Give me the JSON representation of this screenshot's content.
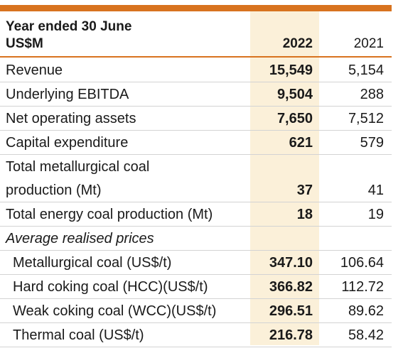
{
  "colors": {
    "accent": "#d8731f",
    "highlight": "#fbf0d9"
  },
  "header": {
    "line1": "Year ended 30 June",
    "line2": "US$M",
    "col_2022": "2022",
    "col_2021": "2021"
  },
  "rows": [
    {
      "label": "Revenue",
      "v2022": "15,549",
      "v2021": "5,154"
    },
    {
      "label": "Underlying EBITDA",
      "v2022": "9,504",
      "v2021": "288"
    },
    {
      "label": "Net operating assets",
      "v2022": "7,650",
      "v2021": "7,512"
    },
    {
      "label": "Capital expenditure",
      "v2022": "621",
      "v2021": "579"
    },
    {
      "label": "Total metallurgical coal",
      "v2022": "",
      "v2021": ""
    },
    {
      "label": "production (Mt)",
      "v2022": "37",
      "v2021": "41"
    },
    {
      "label": "Total energy coal production (Mt)",
      "v2022": "18",
      "v2021": "19"
    },
    {
      "label": "Average realised prices",
      "v2022": "",
      "v2021": ""
    },
    {
      "label": "Metallurgical coal (US$/t)",
      "v2022": "347.10",
      "v2021": "106.64"
    },
    {
      "label": "Hard coking coal (HCC)(US$/t)",
      "v2022": "366.82",
      "v2021": "112.72"
    },
    {
      "label": "Weak coking coal (WCC)(US$/t)",
      "v2022": "296.51",
      "v2021": "89.62"
    },
    {
      "label": "Thermal coal (US$/t)",
      "v2022": "216.78",
      "v2021": "58.42"
    }
  ]
}
